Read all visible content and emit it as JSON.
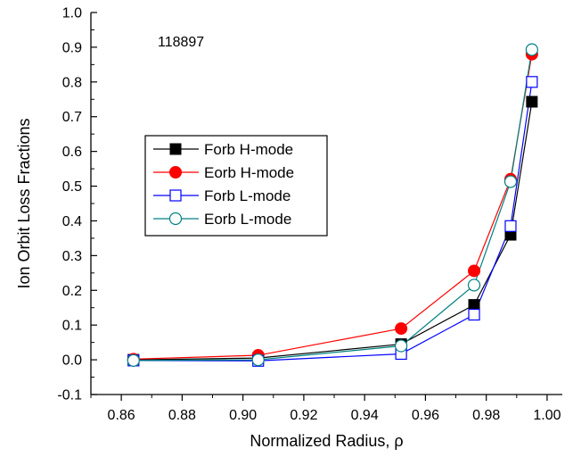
{
  "chart_data": {
    "type": "line",
    "xlabel": "Normalized Radius, ρ",
    "ylabel": "Ion Orbit Loss Fractions",
    "annotation": "118897",
    "xlim": [
      0.85,
      1.005
    ],
    "ylim": [
      -0.1,
      1.0
    ],
    "xticks": [
      0.86,
      0.88,
      0.9,
      0.92,
      0.94,
      0.96,
      0.98,
      1.0
    ],
    "xtick_labels": [
      "0.86",
      "0.88",
      "0.90",
      "0.92",
      "0.94",
      "0.96",
      "0.98",
      "1.00"
    ],
    "yticks": [
      -0.1,
      0.0,
      0.1,
      0.2,
      0.3,
      0.4,
      0.5,
      0.6,
      0.7,
      0.8,
      0.9,
      1.0
    ],
    "ytick_labels": [
      "-0.1",
      "0.0",
      "0.1",
      "0.2",
      "0.3",
      "0.4",
      "0.5",
      "0.6",
      "0.7",
      "0.8",
      "0.9",
      "1.0"
    ],
    "grid": false,
    "legend_position": "middle-left",
    "x": [
      0.864,
      0.905,
      0.952,
      0.976,
      0.988,
      0.995
    ],
    "series": [
      {
        "name": "Forb H-mode",
        "values": [
          0.0,
          0.005,
          0.045,
          0.158,
          0.36,
          0.743
        ],
        "color": "#000000",
        "marker": "square-filled"
      },
      {
        "name": "Eorb H-mode",
        "values": [
          0.002,
          0.013,
          0.09,
          0.256,
          0.52,
          0.88
        ],
        "color": "#ff0000",
        "marker": "circle-filled"
      },
      {
        "name": "Forb L-mode",
        "values": [
          -0.002,
          -0.003,
          0.017,
          0.13,
          0.385,
          0.8
        ],
        "color": "#0000ff",
        "marker": "square-open"
      },
      {
        "name": "Eorb L-mode",
        "values": [
          -0.002,
          0.0,
          0.04,
          0.215,
          0.513,
          0.893
        ],
        "color": "#008080",
        "marker": "circle-open"
      }
    ]
  }
}
